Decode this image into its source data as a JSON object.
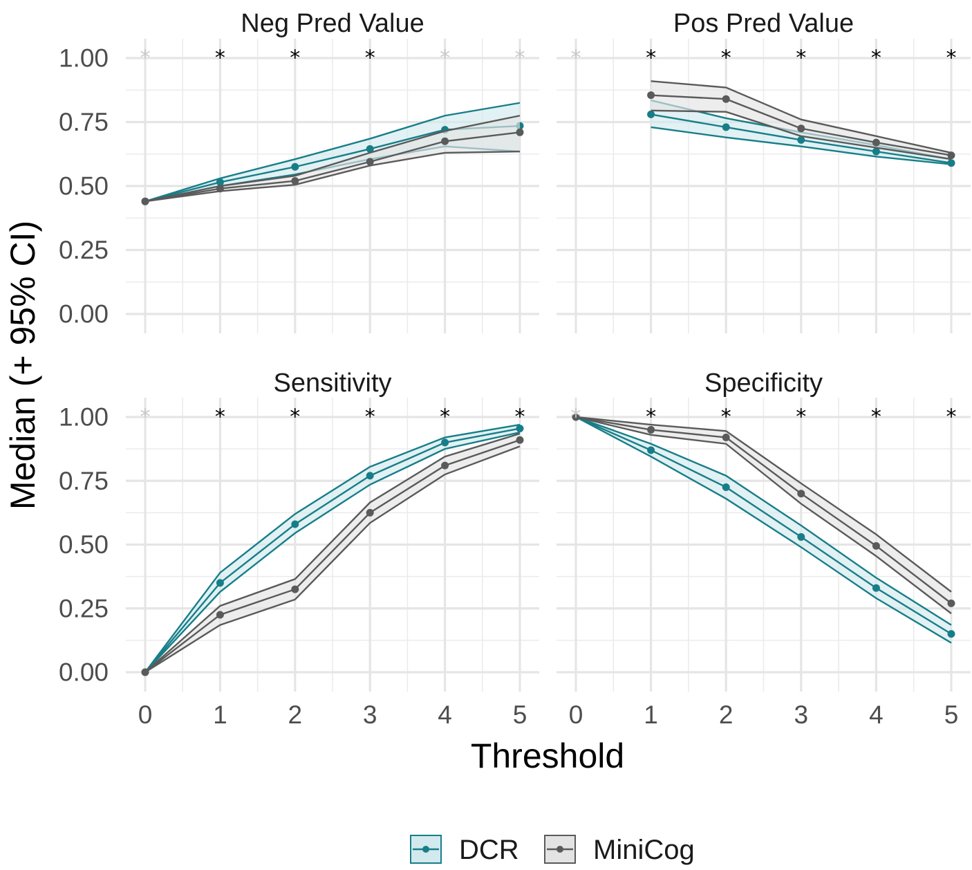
{
  "chart_data": {
    "type": "line",
    "layout": "facet-grid-2x2",
    "xlabel": "Threshold",
    "ylabel": "Median (+ 95% CI)",
    "x": [
      0,
      1,
      2,
      3,
      4,
      5
    ],
    "x_tick_labels": [
      "0",
      "1",
      "2",
      "3",
      "4",
      "5"
    ],
    "ylim": [
      0,
      1
    ],
    "y_tick_labels": [
      "0.00",
      "0.25",
      "0.50",
      "0.75",
      "1.00"
    ],
    "legend": {
      "position": "bottom",
      "entries": [
        {
          "name": "DCR",
          "color": "#177e89",
          "fill": "#d2e9ed"
        },
        {
          "name": "MiniCog",
          "color": "#5a5a5a",
          "fill": "#e3e3e3"
        }
      ]
    },
    "significance_marker": "*",
    "panels": [
      {
        "title": "Neg Pred Value",
        "significant": [
          false,
          true,
          true,
          true,
          false,
          false
        ],
        "series": [
          {
            "name": "DCR",
            "values": [
              0.44,
              0.515,
              0.575,
              0.645,
              0.72,
              0.735
            ],
            "lower": [
              0.44,
              0.5,
              0.545,
              0.605,
              0.655,
              0.635
            ],
            "upper": [
              0.44,
              0.53,
              0.605,
              0.685,
              0.775,
              0.825
            ]
          },
          {
            "name": "MiniCog",
            "values": [
              0.44,
              0.49,
              0.52,
              0.595,
              0.675,
              0.71
            ],
            "lower": [
              0.44,
              0.48,
              0.505,
              0.58,
              0.63,
              0.635
            ],
            "upper": [
              0.44,
              0.5,
              0.54,
              0.63,
              0.715,
              0.775
            ]
          }
        ]
      },
      {
        "title": "Pos Pred Value",
        "significant": [
          false,
          true,
          true,
          true,
          true,
          true
        ],
        "series": [
          {
            "name": "DCR",
            "values": [
              null,
              0.78,
              0.73,
              0.68,
              0.635,
              0.59
            ],
            "lower": [
              null,
              0.73,
              0.69,
              0.655,
              0.615,
              0.585
            ],
            "upper": [
              null,
              0.835,
              0.765,
              0.71,
              0.66,
              0.605
            ]
          },
          {
            "name": "MiniCog",
            "values": [
              null,
              0.855,
              0.84,
              0.725,
              0.67,
              0.62
            ],
            "lower": [
              null,
              0.795,
              0.79,
              0.695,
              0.65,
              0.605
            ],
            "upper": [
              null,
              0.91,
              0.885,
              0.76,
              0.695,
              0.63
            ]
          }
        ]
      },
      {
        "title": "Sensitivity",
        "significant": [
          false,
          true,
          true,
          true,
          true,
          true
        ],
        "series": [
          {
            "name": "DCR",
            "values": [
              0.0,
              0.35,
              0.58,
              0.77,
              0.9,
              0.955
            ],
            "lower": [
              0.0,
              0.315,
              0.545,
              0.735,
              0.875,
              0.94
            ],
            "upper": [
              0.0,
              0.39,
              0.62,
              0.805,
              0.92,
              0.97
            ]
          },
          {
            "name": "MiniCog",
            "values": [
              0.0,
              0.225,
              0.325,
              0.625,
              0.81,
              0.91
            ],
            "lower": [
              0.0,
              0.185,
              0.285,
              0.585,
              0.775,
              0.885
            ],
            "upper": [
              0.0,
              0.26,
              0.365,
              0.665,
              0.845,
              0.935
            ]
          }
        ]
      },
      {
        "title": "Specificity",
        "significant": [
          false,
          true,
          true,
          true,
          true,
          true
        ],
        "series": [
          {
            "name": "DCR",
            "values": [
              1.0,
              0.87,
              0.725,
              0.53,
              0.33,
              0.15
            ],
            "lower": [
              1.0,
              0.845,
              0.68,
              0.49,
              0.29,
              0.115
            ],
            "upper": [
              1.0,
              0.895,
              0.77,
              0.575,
              0.37,
              0.185
            ]
          },
          {
            "name": "MiniCog",
            "values": [
              1.0,
              0.95,
              0.92,
              0.7,
              0.495,
              0.27
            ],
            "lower": [
              1.0,
              0.93,
              0.895,
              0.66,
              0.455,
              0.23
            ],
            "upper": [
              1.0,
              0.97,
              0.945,
              0.74,
              0.54,
              0.315
            ]
          }
        ]
      }
    ]
  }
}
